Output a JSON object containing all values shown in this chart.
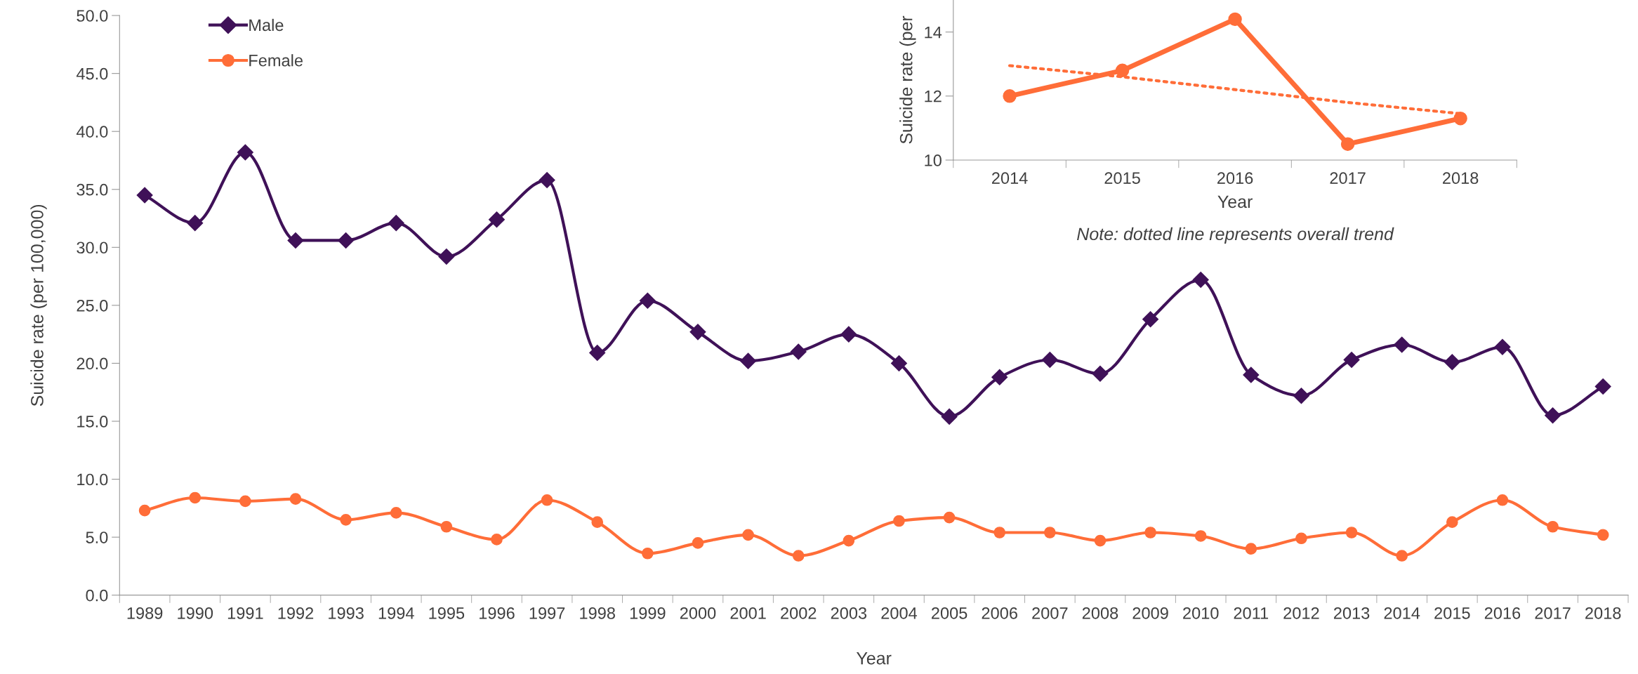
{
  "chart_data": [
    {
      "type": "line",
      "xlabel": "Year",
      "ylabel": "Suicide rate (per 100,000)",
      "categories": [
        "1989",
        "1990",
        "1991",
        "1992",
        "1993",
        "1994",
        "1995",
        "1996",
        "1997",
        "1998",
        "1999",
        "2000",
        "2001",
        "2002",
        "2003",
        "2004",
        "2005",
        "2006",
        "2007",
        "2008",
        "2009",
        "2010",
        "2011",
        "2012",
        "2013",
        "2014",
        "2015",
        "2016",
        "2017",
        "2018"
      ],
      "series": [
        {
          "name": "Male",
          "color": "#3f1158",
          "marker": "diamond",
          "values": [
            34.5,
            32.1,
            38.2,
            30.6,
            30.6,
            32.1,
            29.2,
            32.4,
            35.8,
            20.9,
            25.4,
            22.7,
            20.2,
            21.0,
            22.5,
            20.0,
            15.4,
            18.8,
            20.3,
            19.1,
            23.8,
            27.2,
            19.0,
            17.2,
            20.3,
            21.6,
            20.1,
            21.4,
            15.5,
            18.0
          ]
        },
        {
          "name": "Female",
          "color": "#ff6d38",
          "marker": "circle",
          "values": [
            7.3,
            8.4,
            8.1,
            8.3,
            6.5,
            7.1,
            5.9,
            4.8,
            8.2,
            6.3,
            3.6,
            4.5,
            5.2,
            3.4,
            4.7,
            6.4,
            6.7,
            5.4,
            5.4,
            4.7,
            5.4,
            5.1,
            4.0,
            4.9,
            5.4,
            3.4,
            6.3,
            8.2,
            5.9,
            5.2
          ]
        }
      ],
      "ylim": [
        0,
        50
      ],
      "yticks": [
        {
          "value": 0,
          "label": "0.0"
        },
        {
          "value": 5,
          "label": "5.0"
        },
        {
          "value": 10,
          "label": "10.0"
        },
        {
          "value": 15,
          "label": "15.0"
        },
        {
          "value": 20,
          "label": "20.0"
        },
        {
          "value": 25,
          "label": "25.0"
        },
        {
          "value": 30,
          "label": "30.0"
        },
        {
          "value": 35,
          "label": "35.0"
        },
        {
          "value": 40,
          "label": "40.0"
        },
        {
          "value": 45,
          "label": "45.0"
        },
        {
          "value": 50,
          "label": "50.0"
        }
      ],
      "grid": false,
      "legend": "top left",
      "line_style": "solid"
    },
    {
      "type": "line",
      "xlabel": "Year",
      "ylabel": "Suicide rate (per",
      "categories": [
        "2014",
        "2015",
        "2016",
        "2017",
        "2018"
      ],
      "series": [
        {
          "color": "#ff6d38",
          "marker": "circle",
          "values": [
            12.0,
            12.8,
            14.4,
            10.5,
            11.3
          ]
        },
        {
          "color": "#ff6d38",
          "marker": "none",
          "line_style": "dotted",
          "values": [
            12.95,
            12.6,
            12.2,
            11.8,
            11.45
          ]
        }
      ],
      "ylim": [
        10,
        15
      ],
      "yticks": [
        10,
        12,
        14
      ],
      "annotations": [
        "Note: dotted line represents overall trend"
      ],
      "grid": false,
      "legend": false,
      "line_style": "solid"
    }
  ]
}
